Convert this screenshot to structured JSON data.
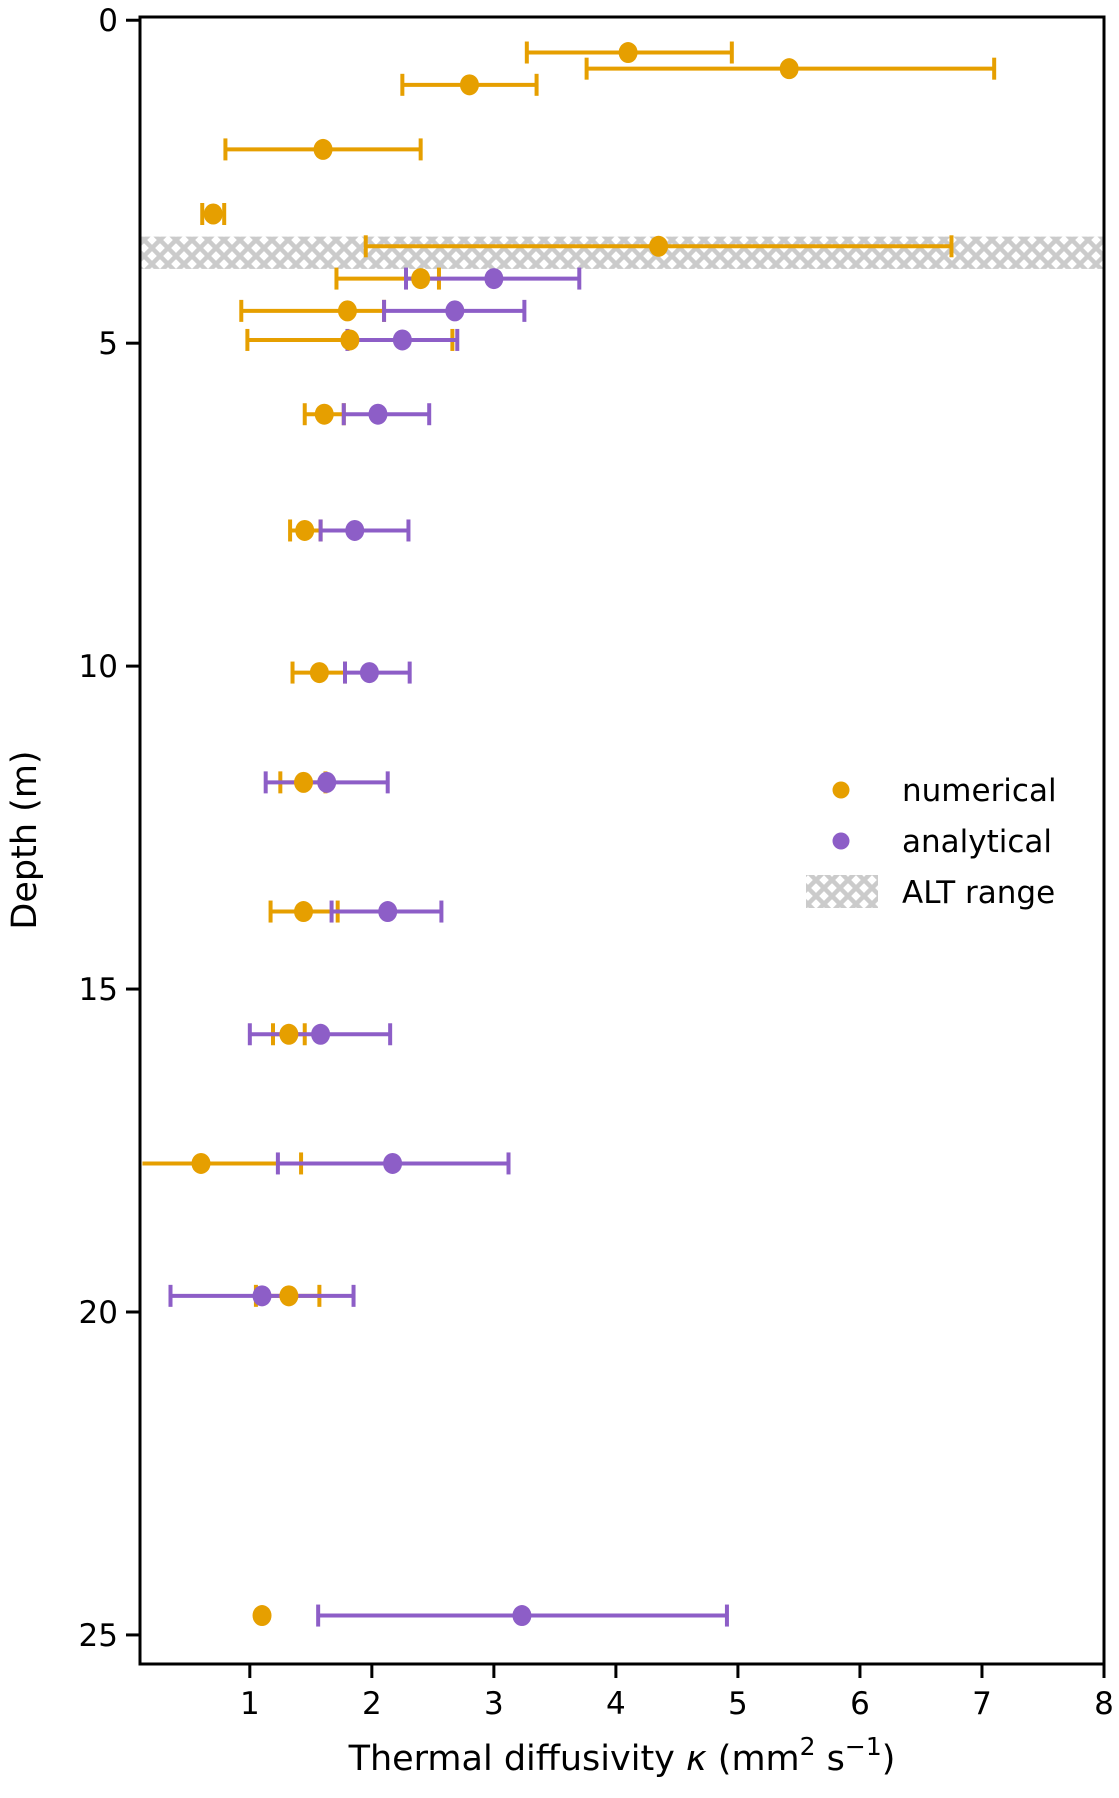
{
  "chart_data": {
    "type": "scatter",
    "title": "",
    "ylabel": "Depth (m)",
    "xlabel_segments": [
      {
        "t": "Thermal diffusivity ",
        "style": "normal"
      },
      {
        "t": "κ",
        "style": "italic"
      },
      {
        "t": " (mm",
        "style": "normal"
      },
      {
        "t": "2",
        "style": "sup"
      },
      {
        "t": " s",
        "style": "normal"
      },
      {
        "t": "−1",
        "style": "sup"
      },
      {
        "t": ")",
        "style": "normal"
      }
    ],
    "xlim": [
      0.1,
      8.0
    ],
    "ylim": [
      -0.05,
      25.45
    ],
    "y_axis_inverted": true,
    "grid": false,
    "xticks": [
      1,
      2,
      3,
      4,
      5,
      6,
      7,
      8
    ],
    "yticks": [
      0,
      5,
      10,
      15,
      20,
      25
    ],
    "alt_range_depth_m": [
      3.35,
      3.85
    ],
    "hatch_color": "#CBCBCB",
    "axis_color": "#000000",
    "series": [
      {
        "name": "numerical",
        "color": "#E69F00",
        "points": [
          {
            "depth": 0.5,
            "k": 4.1,
            "lo": 3.27,
            "hi": 4.95
          },
          {
            "depth": 0.75,
            "k": 5.42,
            "lo": 3.76,
            "hi": 7.1
          },
          {
            "depth": 1.0,
            "k": 2.8,
            "lo": 2.25,
            "hi": 3.35
          },
          {
            "depth": 2.0,
            "k": 1.6,
            "lo": 0.8,
            "hi": 2.4
          },
          {
            "depth": 3.0,
            "k": 0.7,
            "lo": 0.61,
            "hi": 0.79
          },
          {
            "depth": 3.5,
            "k": 4.35,
            "lo": 1.95,
            "hi": 6.75
          },
          {
            "depth": 4.0,
            "k": 2.4,
            "lo": 1.71,
            "hi": 2.55
          },
          {
            "depth": 4.5,
            "k": 1.8,
            "lo": 0.93,
            "hi": 2.1
          },
          {
            "depth": 4.95,
            "k": 1.82,
            "lo": 0.98,
            "hi": 2.66
          },
          {
            "depth": 6.1,
            "k": 1.61,
            "lo": 1.45,
            "hi": 1.77
          },
          {
            "depth": 7.9,
            "k": 1.45,
            "lo": 1.33,
            "hi": 1.58
          },
          {
            "depth": 10.1,
            "k": 1.57,
            "lo": 1.35,
            "hi": 1.78
          },
          {
            "depth": 11.8,
            "k": 1.44,
            "lo": 1.25,
            "hi": 1.62
          },
          {
            "depth": 13.8,
            "k": 1.44,
            "lo": 1.17,
            "hi": 1.72
          },
          {
            "depth": 15.7,
            "k": 1.32,
            "lo": 1.19,
            "hi": 1.45
          },
          {
            "depth": 17.7,
            "k": 0.6,
            "lo": 0.12,
            "hi": 1.42,
            "cap_lo": false
          },
          {
            "depth": 19.75,
            "k": 1.32,
            "lo": 1.05,
            "hi": 1.57
          },
          {
            "depth": 24.7,
            "k": 1.1,
            "lo": null,
            "hi": null
          }
        ]
      },
      {
        "name": "analytical",
        "color": "#8D5EC7",
        "points": [
          {
            "depth": 4.0,
            "k": 3.0,
            "lo": 2.28,
            "hi": 3.7
          },
          {
            "depth": 4.5,
            "k": 2.68,
            "lo": 2.1,
            "hi": 3.25
          },
          {
            "depth": 4.95,
            "k": 2.25,
            "lo": 1.8,
            "hi": 2.7
          },
          {
            "depth": 6.1,
            "k": 2.05,
            "lo": 1.77,
            "hi": 2.47
          },
          {
            "depth": 7.9,
            "k": 1.86,
            "lo": 1.58,
            "hi": 2.3
          },
          {
            "depth": 10.1,
            "k": 1.98,
            "lo": 1.78,
            "hi": 2.31
          },
          {
            "depth": 11.8,
            "k": 1.63,
            "lo": 1.13,
            "hi": 2.13
          },
          {
            "depth": 13.8,
            "k": 2.13,
            "lo": 1.67,
            "hi": 2.57
          },
          {
            "depth": 15.7,
            "k": 1.58,
            "lo": 1.0,
            "hi": 2.15
          },
          {
            "depth": 17.7,
            "k": 2.17,
            "lo": 1.23,
            "hi": 3.12
          },
          {
            "depth": 19.75,
            "k": 1.1,
            "lo": 0.35,
            "hi": 1.85
          },
          {
            "depth": 24.7,
            "k": 3.23,
            "lo": 1.56,
            "hi": 4.91
          }
        ]
      }
    ],
    "legend": [
      {
        "label": "numerical",
        "marker": "dot",
        "color": "#E69F00"
      },
      {
        "label": "analytical",
        "marker": "dot",
        "color": "#8D5EC7"
      },
      {
        "label": "ALT range",
        "marker": "hatch",
        "color": "#CBCBCB"
      }
    ],
    "legend_position": "center right"
  }
}
